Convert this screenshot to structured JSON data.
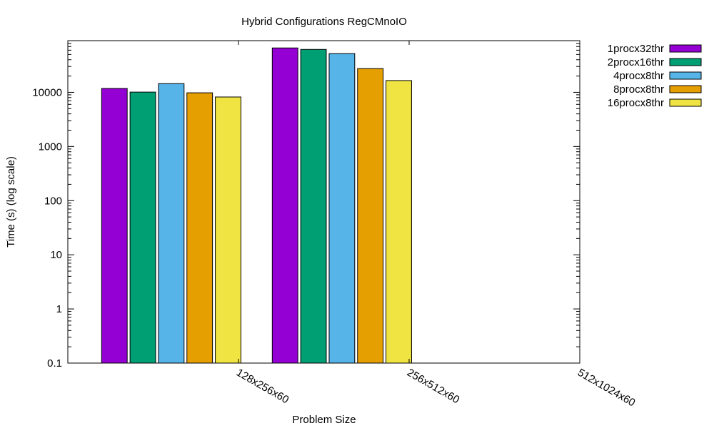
{
  "chart_data": {
    "type": "bar",
    "title": "Hybrid Configurations RegCMnoIO",
    "xlabel": "Problem Size",
    "ylabel": "Time (s) (log scale)",
    "yscale": "log",
    "ylim": [
      0.1,
      90000
    ],
    "yticks": [
      {
        "value": 0.1,
        "label": "0.1"
      },
      {
        "value": 1,
        "label": "1"
      },
      {
        "value": 10,
        "label": "10"
      },
      {
        "value": 100,
        "label": "100"
      },
      {
        "value": 1000,
        "label": "1000"
      },
      {
        "value": 10000,
        "label": "10000"
      }
    ],
    "categories": [
      "128x256x60",
      "256x512x60",
      "512x1024x60"
    ],
    "legend_position": "top-right outside",
    "grid": false,
    "series": [
      {
        "name": "1procx32thr",
        "color": "#9400d3",
        "values": [
          11800,
          66000,
          null
        ]
      },
      {
        "name": "2procx16thr",
        "color": "#009e73",
        "values": [
          10100,
          62000,
          null
        ]
      },
      {
        "name": "4procx8thr",
        "color": "#56b4e9",
        "values": [
          14500,
          52000,
          null
        ]
      },
      {
        "name": "8procx8thr",
        "color": "#e69f00",
        "values": [
          9800,
          27500,
          null
        ]
      },
      {
        "name": "16procx8thr",
        "color": "#f0e442",
        "values": [
          8200,
          16500,
          null
        ]
      }
    ]
  }
}
